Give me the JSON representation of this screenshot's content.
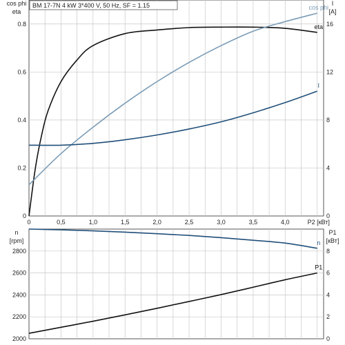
{
  "chart_data": [
    {
      "type": "line",
      "title": "BM 17-7N   4 kW   3*400 V, 50 Hz, SF = 1.15",
      "xlabel": "P2 [кВт]",
      "x_ticks": [
        "0",
        "0,5",
        "1,0",
        "1,5",
        "2,0",
        "2,5",
        "3,0",
        "3,5",
        "4,0"
      ],
      "xlim": [
        0,
        4.6
      ],
      "left_axis": {
        "label_line1": "cos phi",
        "label_line2": "eta",
        "ylim": [
          0,
          0.9
        ],
        "ticks": [
          "0",
          "0.2",
          "0.4",
          "0.6",
          "0.8"
        ]
      },
      "right_axis": {
        "label_line1": "I",
        "label_line2": "[A]",
        "ylim": [
          0,
          18
        ],
        "ticks": [
          "0",
          "4",
          "8",
          "12",
          "16"
        ]
      },
      "grid": true,
      "series": [
        {
          "name": "eta",
          "axis": "left",
          "color": "#111111",
          "x": [
            0,
            0.1,
            0.2,
            0.3,
            0.5,
            0.75,
            1.0,
            1.5,
            2.0,
            2.5,
            3.0,
            3.5,
            4.0,
            4.5
          ],
          "y": [
            0,
            0.2,
            0.34,
            0.44,
            0.56,
            0.65,
            0.71,
            0.76,
            0.775,
            0.785,
            0.787,
            0.787,
            0.782,
            0.765
          ]
        },
        {
          "name": "cos phi",
          "axis": "left",
          "color": "#7a9bb5",
          "x": [
            0,
            0.5,
            1.0,
            1.5,
            2.0,
            2.5,
            3.0,
            3.5,
            4.0,
            4.5
          ],
          "y": [
            0.13,
            0.26,
            0.37,
            0.47,
            0.56,
            0.64,
            0.71,
            0.77,
            0.81,
            0.845
          ]
        },
        {
          "name": "I",
          "axis": "right",
          "color": "#1f4e79",
          "x": [
            0,
            0.5,
            1.0,
            1.5,
            2.0,
            2.5,
            3.0,
            3.5,
            4.0,
            4.5
          ],
          "y": [
            5.9,
            5.9,
            6.05,
            6.35,
            6.75,
            7.25,
            7.85,
            8.6,
            9.45,
            10.4
          ]
        }
      ]
    },
    {
      "type": "line",
      "xlabel": "P2 [кВт]",
      "xlim": [
        0,
        4.6
      ],
      "left_axis": {
        "label_line1": "n",
        "label_line2": "[rpm]",
        "ylim": [
          2000,
          3000
        ],
        "ticks": [
          "2000",
          "2200",
          "2400",
          "2600",
          "2800"
        ]
      },
      "right_axis": {
        "label_line1": "P1",
        "label_line2": "[кВт]",
        "ylim": [
          0,
          10
        ],
        "ticks": [
          "0",
          "2",
          "4",
          "6",
          "8"
        ]
      },
      "grid": true,
      "series": [
        {
          "name": "n",
          "axis": "left",
          "color": "#1f4e79",
          "x": [
            0,
            0.5,
            1.0,
            1.5,
            2.0,
            2.5,
            3.0,
            3.5,
            4.0,
            4.5
          ],
          "y": [
            3000,
            2993,
            2984,
            2972,
            2958,
            2942,
            2922,
            2898,
            2872,
            2825
          ]
        },
        {
          "name": "P1",
          "axis": "right",
          "color": "#111111",
          "x": [
            0,
            0.5,
            1.0,
            1.5,
            2.0,
            2.5,
            3.0,
            3.5,
            4.0,
            4.5
          ],
          "y": [
            0.5,
            1.05,
            1.6,
            2.18,
            2.78,
            3.4,
            4.03,
            4.7,
            5.38,
            6.0
          ]
        }
      ]
    }
  ]
}
